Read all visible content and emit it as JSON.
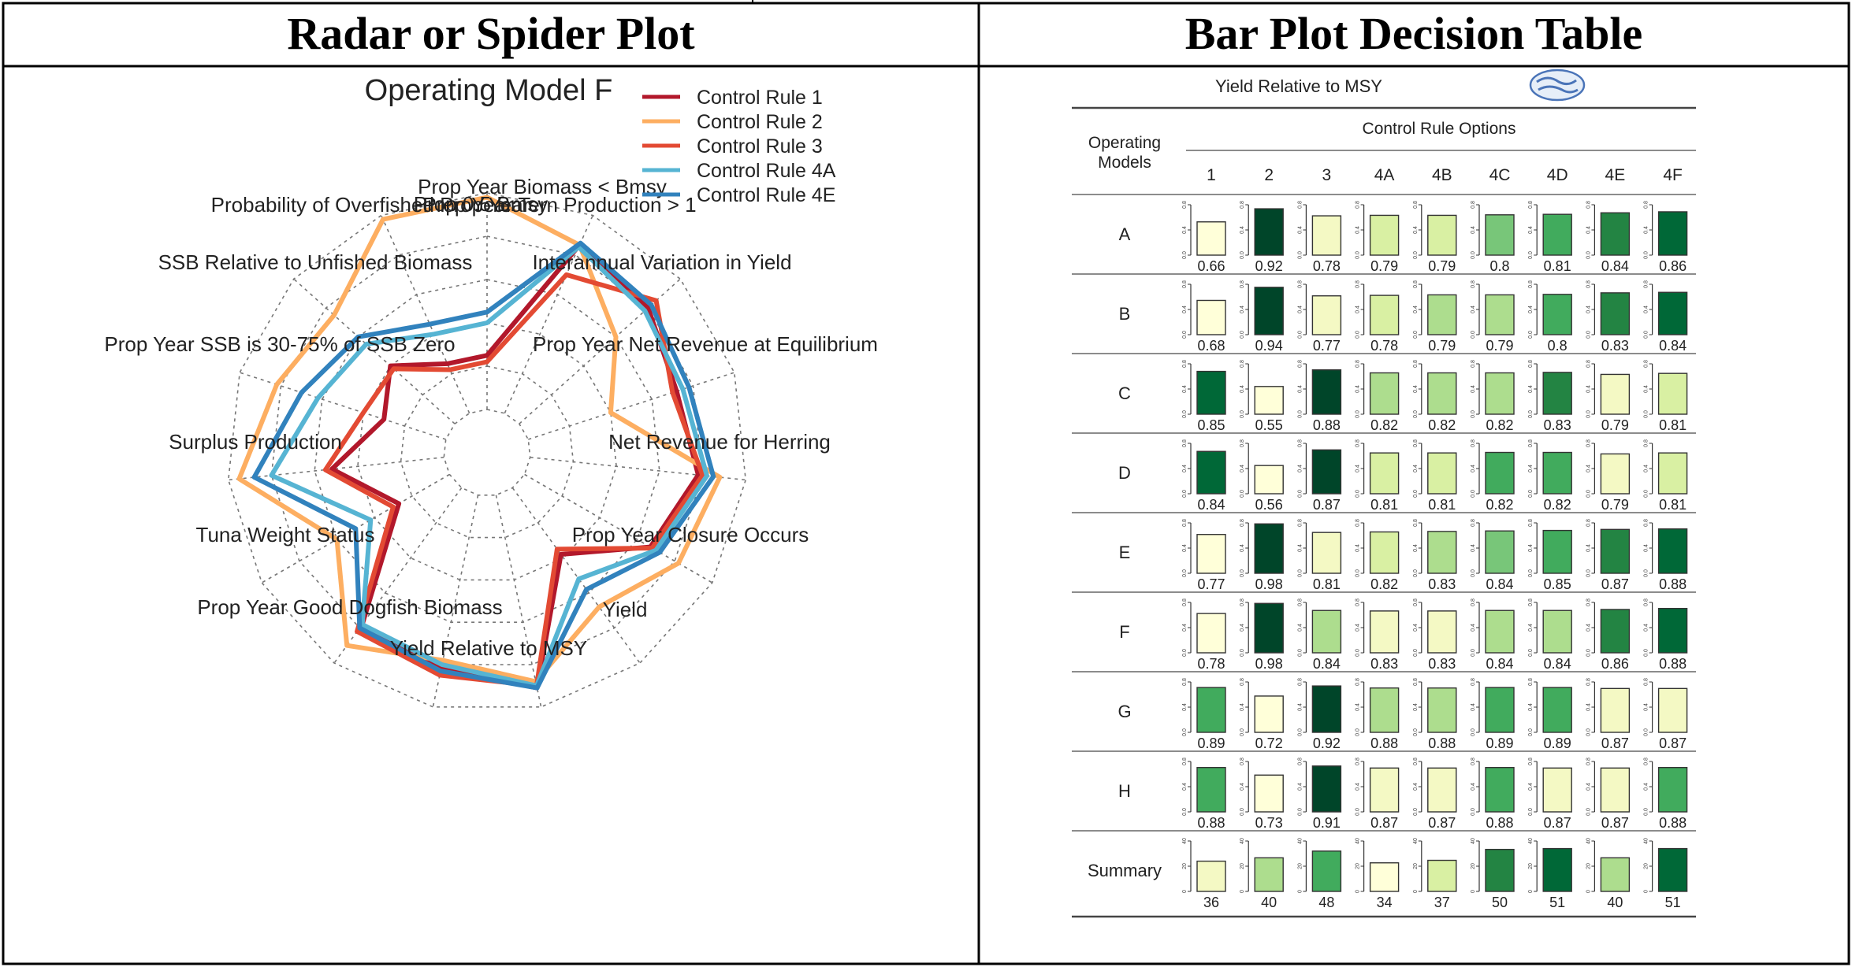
{
  "headers": {
    "left": "Radar or Spider Plot",
    "right": "Bar Plot Decision Table"
  },
  "chart_data": [
    {
      "type": "radar",
      "title": "Operating Model F",
      "axes": [
        "Prop Year Biomass < Bmsy",
        "Interannual Variation in Yield",
        "Prop Year Net Revenue at Equilibrium",
        "Net Revenue for Herring",
        "Prop Year Closure Occurs",
        "Yield",
        "Yield Relative to MSY",
        "Prop Year Good Dogfish Biomass",
        "Tuna Weight Status",
        "Surplus Production",
        "Prop Year SSB is 30-75% of SSB Zero",
        "SSB Relative to Unfished Biomass",
        "Probability of Overfished Prop Year",
        "Prop Year Tern Production > 1",
        "Prop 0.5 Bmsy"
      ],
      "series": [
        {
          "name": "Control Rule  1",
          "color": "#b2182b",
          "values": [
            0.25,
            0.85,
            0.8,
            0.72,
            0.78,
            0.67,
            0.38,
            0.91,
            0.82,
            0.78,
            0.27,
            0.52,
            0.3,
            0.4,
            0.25
          ]
        },
        {
          "name": "Control Rule  2",
          "color": "#fdae61",
          "values": [
            0.98,
            0.85,
            0.6,
            0.4,
            0.88,
            0.82,
            0.68,
            0.88,
            0.78,
            0.9,
            0.6,
            0.95,
            0.82,
            0.75,
            0.98
          ]
        },
        {
          "name": "Control Rule  3",
          "color": "#e34a33",
          "values": [
            0.22,
            0.7,
            0.85,
            0.7,
            0.8,
            0.68,
            0.35,
            0.9,
            0.85,
            0.82,
            0.3,
            0.55,
            0.4,
            0.38,
            0.22
          ]
        },
        {
          "name": "Control Rule  4A",
          "color": "#56b4d3",
          "values": [
            0.4,
            0.84,
            0.78,
            0.75,
            0.82,
            0.7,
            0.52,
            0.9,
            0.8,
            0.78,
            0.42,
            0.8,
            0.62,
            0.55,
            0.4
          ]
        },
        {
          "name": "Control Rule  4E",
          "color": "#3182bd",
          "values": [
            0.45,
            0.86,
            0.82,
            0.78,
            0.85,
            0.72,
            0.58,
            0.91,
            0.83,
            0.8,
            0.5,
            0.88,
            0.7,
            0.6,
            0.45
          ]
        }
      ],
      "legend_position": "top-right"
    },
    {
      "type": "bar-table",
      "title": "Yield Relative to MSY",
      "row_header": [
        "Operating",
        "Models"
      ],
      "col_header": "Control Rule Options",
      "columns": [
        "1",
        "2",
        "3",
        "4A",
        "4B",
        "4C",
        "4D",
        "4E",
        "4F"
      ],
      "ticks": [
        "0.0",
        "0.4",
        "0.8"
      ],
      "summary_ticks": [
        "0",
        "20",
        "40"
      ],
      "rows": [
        {
          "label": "A",
          "values": [
            "0.66",
            "0.92",
            "0.78",
            "0.79",
            "0.79",
            "0.8",
            "0.81",
            "0.84",
            "0.86"
          ]
        },
        {
          "label": "B",
          "values": [
            "0.68",
            "0.94",
            "0.77",
            "0.78",
            "0.79",
            "0.79",
            "0.8",
            "0.83",
            "0.84"
          ]
        },
        {
          "label": "C",
          "values": [
            "0.85",
            "0.55",
            "0.88",
            "0.82",
            "0.82",
            "0.82",
            "0.83",
            "0.79",
            "0.81"
          ]
        },
        {
          "label": "D",
          "values": [
            "0.84",
            "0.56",
            "0.87",
            "0.81",
            "0.81",
            "0.82",
            "0.82",
            "0.79",
            "0.81"
          ]
        },
        {
          "label": "E",
          "values": [
            "0.77",
            "0.98",
            "0.81",
            "0.82",
            "0.83",
            "0.84",
            "0.85",
            "0.87",
            "0.88"
          ]
        },
        {
          "label": "F",
          "values": [
            "0.78",
            "0.98",
            "0.84",
            "0.83",
            "0.83",
            "0.84",
            "0.84",
            "0.86",
            "0.88"
          ]
        },
        {
          "label": "G",
          "values": [
            "0.89",
            "0.72",
            "0.92",
            "0.88",
            "0.88",
            "0.89",
            "0.89",
            "0.87",
            "0.87"
          ]
        },
        {
          "label": "H",
          "values": [
            "0.88",
            "0.73",
            "0.91",
            "0.87",
            "0.87",
            "0.88",
            "0.87",
            "0.87",
            "0.88"
          ]
        }
      ],
      "summary": {
        "label": "Summary",
        "values": [
          "36",
          "40",
          "48",
          "34",
          "37",
          "50",
          "51",
          "40",
          "51"
        ]
      },
      "palette": [
        "#ffffd9",
        "#f4f9c4",
        "#d9f0a3",
        "#addd8e",
        "#78c679",
        "#41ab5d",
        "#238443",
        "#006837",
        "#004529"
      ]
    }
  ]
}
